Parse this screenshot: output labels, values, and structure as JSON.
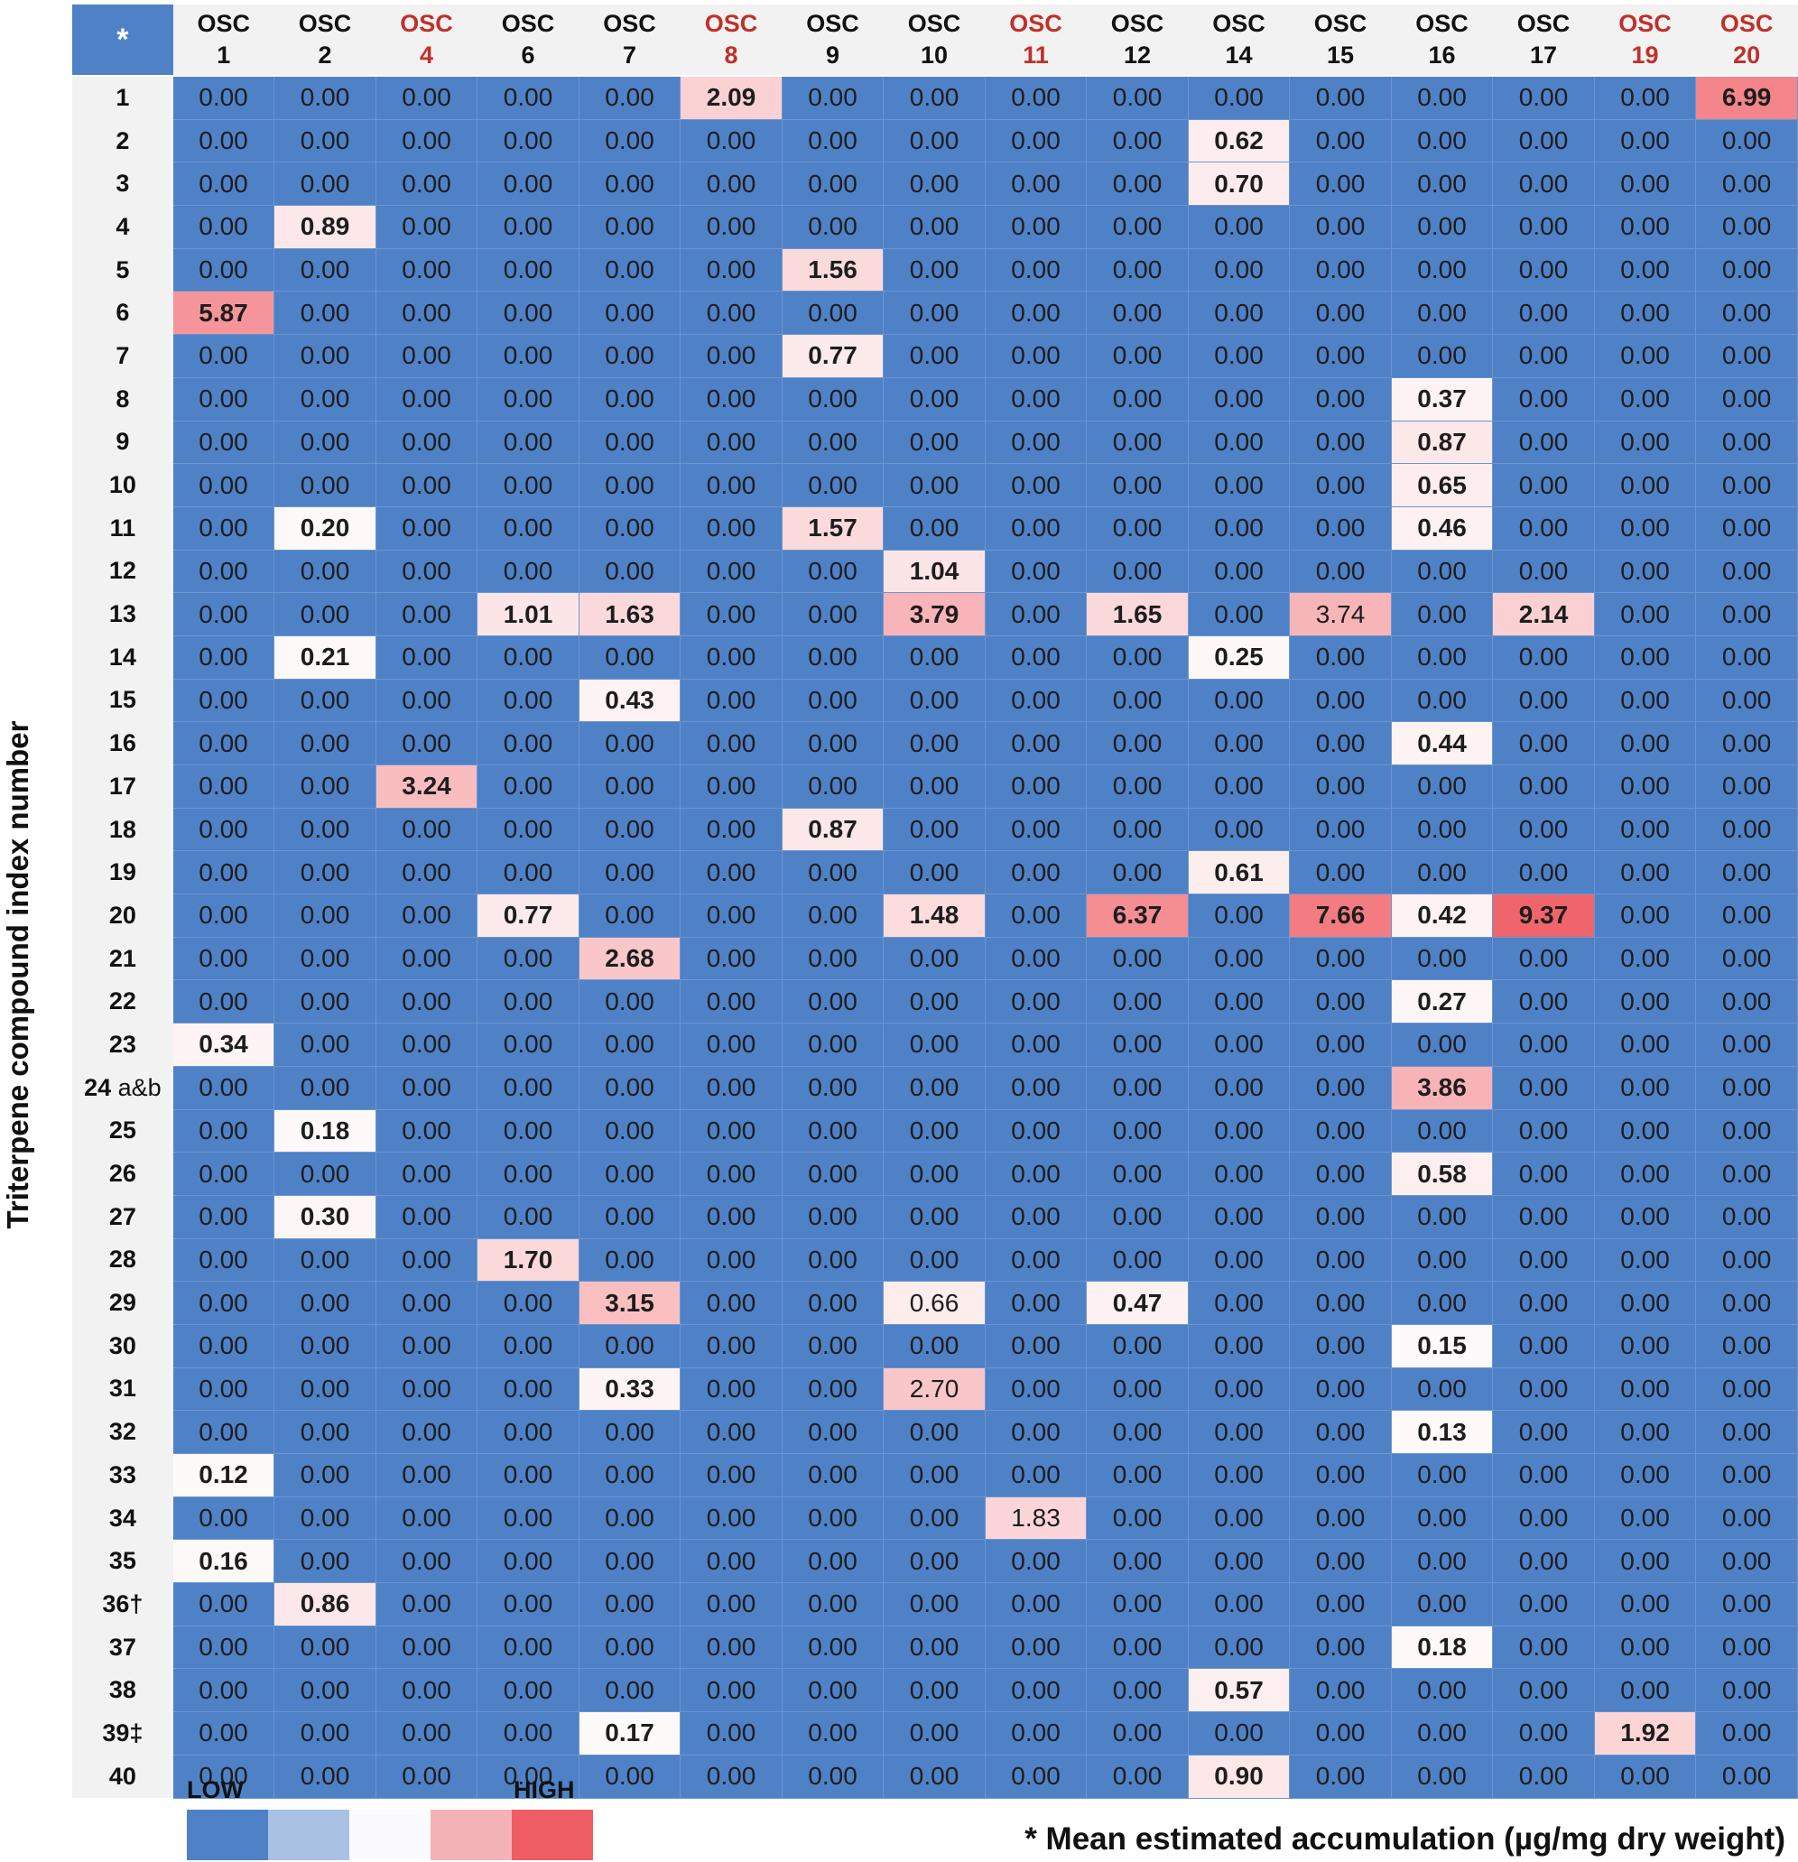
{
  "chart_data": {
    "type": "heatmap",
    "title": "",
    "ylabel": "Triterpene compound index number",
    "corner_label": "*",
    "columns": [
      {
        "top": "OSC",
        "bottom": "1",
        "color": "#111111"
      },
      {
        "top": "OSC",
        "bottom": "2",
        "color": "#111111"
      },
      {
        "top": "OSC",
        "bottom": "4",
        "color": "#c0302b"
      },
      {
        "top": "OSC",
        "bottom": "6",
        "color": "#111111"
      },
      {
        "top": "OSC",
        "bottom": "7",
        "color": "#111111"
      },
      {
        "top": "OSC",
        "bottom": "8",
        "color": "#c0302b"
      },
      {
        "top": "OSC",
        "bottom": "9",
        "color": "#111111"
      },
      {
        "top": "OSC",
        "bottom": "10",
        "color": "#111111"
      },
      {
        "top": "OSC",
        "bottom": "11",
        "color": "#c0302b"
      },
      {
        "top": "OSC",
        "bottom": "12",
        "color": "#111111"
      },
      {
        "top": "OSC",
        "bottom": "14",
        "color": "#111111"
      },
      {
        "top": "OSC",
        "bottom": "15",
        "color": "#111111"
      },
      {
        "top": "OSC",
        "bottom": "16",
        "color": "#111111"
      },
      {
        "top": "OSC",
        "bottom": "17",
        "color": "#111111"
      },
      {
        "top": "OSC",
        "bottom": "19",
        "color": "#c0302b"
      },
      {
        "top": "OSC",
        "bottom": "20",
        "color": "#c0302b"
      }
    ],
    "rows": [
      {
        "label": "1",
        "suffix": ""
      },
      {
        "label": "2",
        "suffix": ""
      },
      {
        "label": "3",
        "suffix": ""
      },
      {
        "label": "4",
        "suffix": ""
      },
      {
        "label": "5",
        "suffix": ""
      },
      {
        "label": "6",
        "suffix": ""
      },
      {
        "label": "7",
        "suffix": ""
      },
      {
        "label": "8",
        "suffix": ""
      },
      {
        "label": "9",
        "suffix": ""
      },
      {
        "label": "10",
        "suffix": ""
      },
      {
        "label": "11",
        "suffix": ""
      },
      {
        "label": "12",
        "suffix": ""
      },
      {
        "label": "13",
        "suffix": ""
      },
      {
        "label": "14",
        "suffix": ""
      },
      {
        "label": "15",
        "suffix": ""
      },
      {
        "label": "16",
        "suffix": ""
      },
      {
        "label": "17",
        "suffix": ""
      },
      {
        "label": "18",
        "suffix": ""
      },
      {
        "label": "19",
        "suffix": ""
      },
      {
        "label": "20",
        "suffix": ""
      },
      {
        "label": "21",
        "suffix": ""
      },
      {
        "label": "22",
        "suffix": ""
      },
      {
        "label": "23",
        "suffix": ""
      },
      {
        "label": "24",
        "suffix": " a&b"
      },
      {
        "label": "25",
        "suffix": ""
      },
      {
        "label": "26",
        "suffix": ""
      },
      {
        "label": "27",
        "suffix": ""
      },
      {
        "label": "28",
        "suffix": ""
      },
      {
        "label": "29",
        "suffix": ""
      },
      {
        "label": "30",
        "suffix": ""
      },
      {
        "label": "31",
        "suffix": ""
      },
      {
        "label": "32",
        "suffix": ""
      },
      {
        "label": "33",
        "suffix": ""
      },
      {
        "label": "34",
        "suffix": ""
      },
      {
        "label": "35",
        "suffix": ""
      },
      {
        "label": "36†",
        "suffix": ""
      },
      {
        "label": "37",
        "suffix": ""
      },
      {
        "label": "38",
        "suffix": ""
      },
      {
        "label": "39‡",
        "suffix": ""
      },
      {
        "label": "40",
        "suffix": ""
      }
    ],
    "values": [
      [
        0,
        0,
        0,
        0,
        0,
        2.09,
        0,
        0,
        0,
        0,
        0,
        0,
        0,
        0,
        0,
        6.99
      ],
      [
        0,
        0,
        0,
        0,
        0,
        0,
        0,
        0,
        0,
        0,
        0.62,
        0,
        0,
        0,
        0,
        0
      ],
      [
        0,
        0,
        0,
        0,
        0,
        0,
        0,
        0,
        0,
        0,
        0.7,
        0,
        0,
        0,
        0,
        0
      ],
      [
        0,
        0.89,
        0,
        0,
        0,
        0,
        0,
        0,
        0,
        0,
        0,
        0,
        0,
        0,
        0,
        0
      ],
      [
        0,
        0,
        0,
        0,
        0,
        0,
        1.56,
        0,
        0,
        0,
        0,
        0,
        0,
        0,
        0,
        0
      ],
      [
        5.87,
        0,
        0,
        0,
        0,
        0,
        0,
        0,
        0,
        0,
        0,
        0,
        0,
        0,
        0,
        0
      ],
      [
        0,
        0,
        0,
        0,
        0,
        0,
        0.77,
        0,
        0,
        0,
        0,
        0,
        0,
        0,
        0,
        0
      ],
      [
        0,
        0,
        0,
        0,
        0,
        0,
        0,
        0,
        0,
        0,
        0,
        0,
        0.37,
        0,
        0,
        0
      ],
      [
        0,
        0,
        0,
        0,
        0,
        0,
        0,
        0,
        0,
        0,
        0,
        0,
        0.87,
        0,
        0,
        0
      ],
      [
        0,
        0,
        0,
        0,
        0,
        0,
        0,
        0,
        0,
        0,
        0,
        0,
        0.65,
        0,
        0,
        0
      ],
      [
        0,
        0.2,
        0,
        0,
        0,
        0,
        1.57,
        0,
        0,
        0,
        0,
        0,
        0.46,
        0,
        0,
        0
      ],
      [
        0,
        0,
        0,
        0,
        0,
        0,
        0,
        1.04,
        0,
        0,
        0,
        0,
        0,
        0,
        0,
        0
      ],
      [
        0,
        0,
        0,
        1.01,
        1.63,
        0,
        0,
        3.79,
        0,
        1.65,
        0,
        3.74,
        0,
        2.14,
        0,
        0
      ],
      [
        0,
        0.21,
        0,
        0,
        0,
        0,
        0,
        0,
        0,
        0,
        0.25,
        0,
        0,
        0,
        0,
        0
      ],
      [
        0,
        0,
        0,
        0,
        0.43,
        0,
        0,
        0,
        0,
        0,
        0,
        0,
        0,
        0,
        0,
        0
      ],
      [
        0,
        0,
        0,
        0,
        0,
        0,
        0,
        0,
        0,
        0,
        0,
        0,
        0.44,
        0,
        0,
        0
      ],
      [
        0,
        0,
        3.24,
        0,
        0,
        0,
        0,
        0,
        0,
        0,
        0,
        0,
        0,
        0,
        0,
        0
      ],
      [
        0,
        0,
        0,
        0,
        0,
        0,
        0.87,
        0,
        0,
        0,
        0,
        0,
        0,
        0,
        0,
        0
      ],
      [
        0,
        0,
        0,
        0,
        0,
        0,
        0,
        0,
        0,
        0,
        0.61,
        0,
        0,
        0,
        0,
        0
      ],
      [
        0,
        0,
        0,
        0.77,
        0,
        0,
        0,
        1.48,
        0,
        6.37,
        0,
        7.66,
        0.42,
        9.37,
        0,
        0
      ],
      [
        0,
        0,
        0,
        0,
        2.68,
        0,
        0,
        0,
        0,
        0,
        0,
        0,
        0,
        0,
        0,
        0
      ],
      [
        0,
        0,
        0,
        0,
        0,
        0,
        0,
        0,
        0,
        0,
        0,
        0,
        0.27,
        0,
        0,
        0
      ],
      [
        0.34,
        0,
        0,
        0,
        0,
        0,
        0,
        0,
        0,
        0,
        0,
        0,
        0,
        0,
        0,
        0
      ],
      [
        0,
        0,
        0,
        0,
        0,
        0,
        0,
        0,
        0,
        0,
        0,
        0,
        3.86,
        0,
        0,
        0
      ],
      [
        0,
        0.18,
        0,
        0,
        0,
        0,
        0,
        0,
        0,
        0,
        0,
        0,
        0,
        0,
        0,
        0
      ],
      [
        0,
        0,
        0,
        0,
        0,
        0,
        0,
        0,
        0,
        0,
        0,
        0,
        0.58,
        0,
        0,
        0
      ],
      [
        0,
        0.3,
        0,
        0,
        0,
        0,
        0,
        0,
        0,
        0,
        0,
        0,
        0,
        0,
        0,
        0
      ],
      [
        0,
        0,
        0,
        1.7,
        0,
        0,
        0,
        0,
        0,
        0,
        0,
        0,
        0,
        0,
        0,
        0
      ],
      [
        0,
        0,
        0,
        0,
        3.15,
        0,
        0,
        0.66,
        0,
        0.47,
        0,
        0,
        0,
        0,
        0,
        0
      ],
      [
        0,
        0,
        0,
        0,
        0,
        0,
        0,
        0,
        0,
        0,
        0,
        0,
        0.15,
        0,
        0,
        0
      ],
      [
        0,
        0,
        0,
        0,
        0.33,
        0,
        0,
        2.7,
        0,
        0,
        0,
        0,
        0,
        0,
        0,
        0
      ],
      [
        0,
        0,
        0,
        0,
        0,
        0,
        0,
        0,
        0,
        0,
        0,
        0,
        0.13,
        0,
        0,
        0
      ],
      [
        0.12,
        0,
        0,
        0,
        0,
        0,
        0,
        0,
        0,
        0,
        0,
        0,
        0,
        0,
        0,
        0
      ],
      [
        0,
        0,
        0,
        0,
        0,
        0,
        0,
        0,
        1.83,
        0,
        0,
        0,
        0,
        0,
        0,
        0
      ],
      [
        0.16,
        0,
        0,
        0,
        0,
        0,
        0,
        0,
        0,
        0,
        0,
        0,
        0,
        0,
        0,
        0
      ],
      [
        0,
        0.86,
        0,
        0,
        0,
        0,
        0,
        0,
        0,
        0,
        0,
        0,
        0,
        0,
        0,
        0
      ],
      [
        0,
        0,
        0,
        0,
        0,
        0,
        0,
        0,
        0,
        0,
        0,
        0,
        0.18,
        0,
        0,
        0
      ],
      [
        0,
        0,
        0,
        0,
        0,
        0,
        0,
        0,
        0,
        0,
        0.57,
        0,
        0,
        0,
        0,
        0
      ],
      [
        0,
        0,
        0,
        0,
        0.17,
        0,
        0,
        0,
        0,
        0,
        0,
        0,
        0,
        0,
        1.92,
        0
      ],
      [
        0,
        0,
        0,
        0,
        0,
        0,
        0,
        0,
        0,
        0,
        0.9,
        0,
        0,
        0,
        0,
        0
      ]
    ],
    "light_value_cells": [
      [
        12,
        11
      ],
      [
        28,
        7
      ],
      [
        30,
        7
      ],
      [
        33,
        8
      ]
    ],
    "color_scale": {
      "low": "#4f81c7",
      "mid": "#ffffff",
      "high": "#ef5d64",
      "max_value": 10
    },
    "legend": {
      "low_label": "LOW",
      "high_label": "HIGH",
      "swatches": [
        "#4f81c7",
        "#a9c1e3",
        "#fbfbfd",
        "#f3b2b6",
        "#ef5d64"
      ]
    },
    "footnote": "* Mean estimated accumulation (µg/mg dry weight)"
  }
}
